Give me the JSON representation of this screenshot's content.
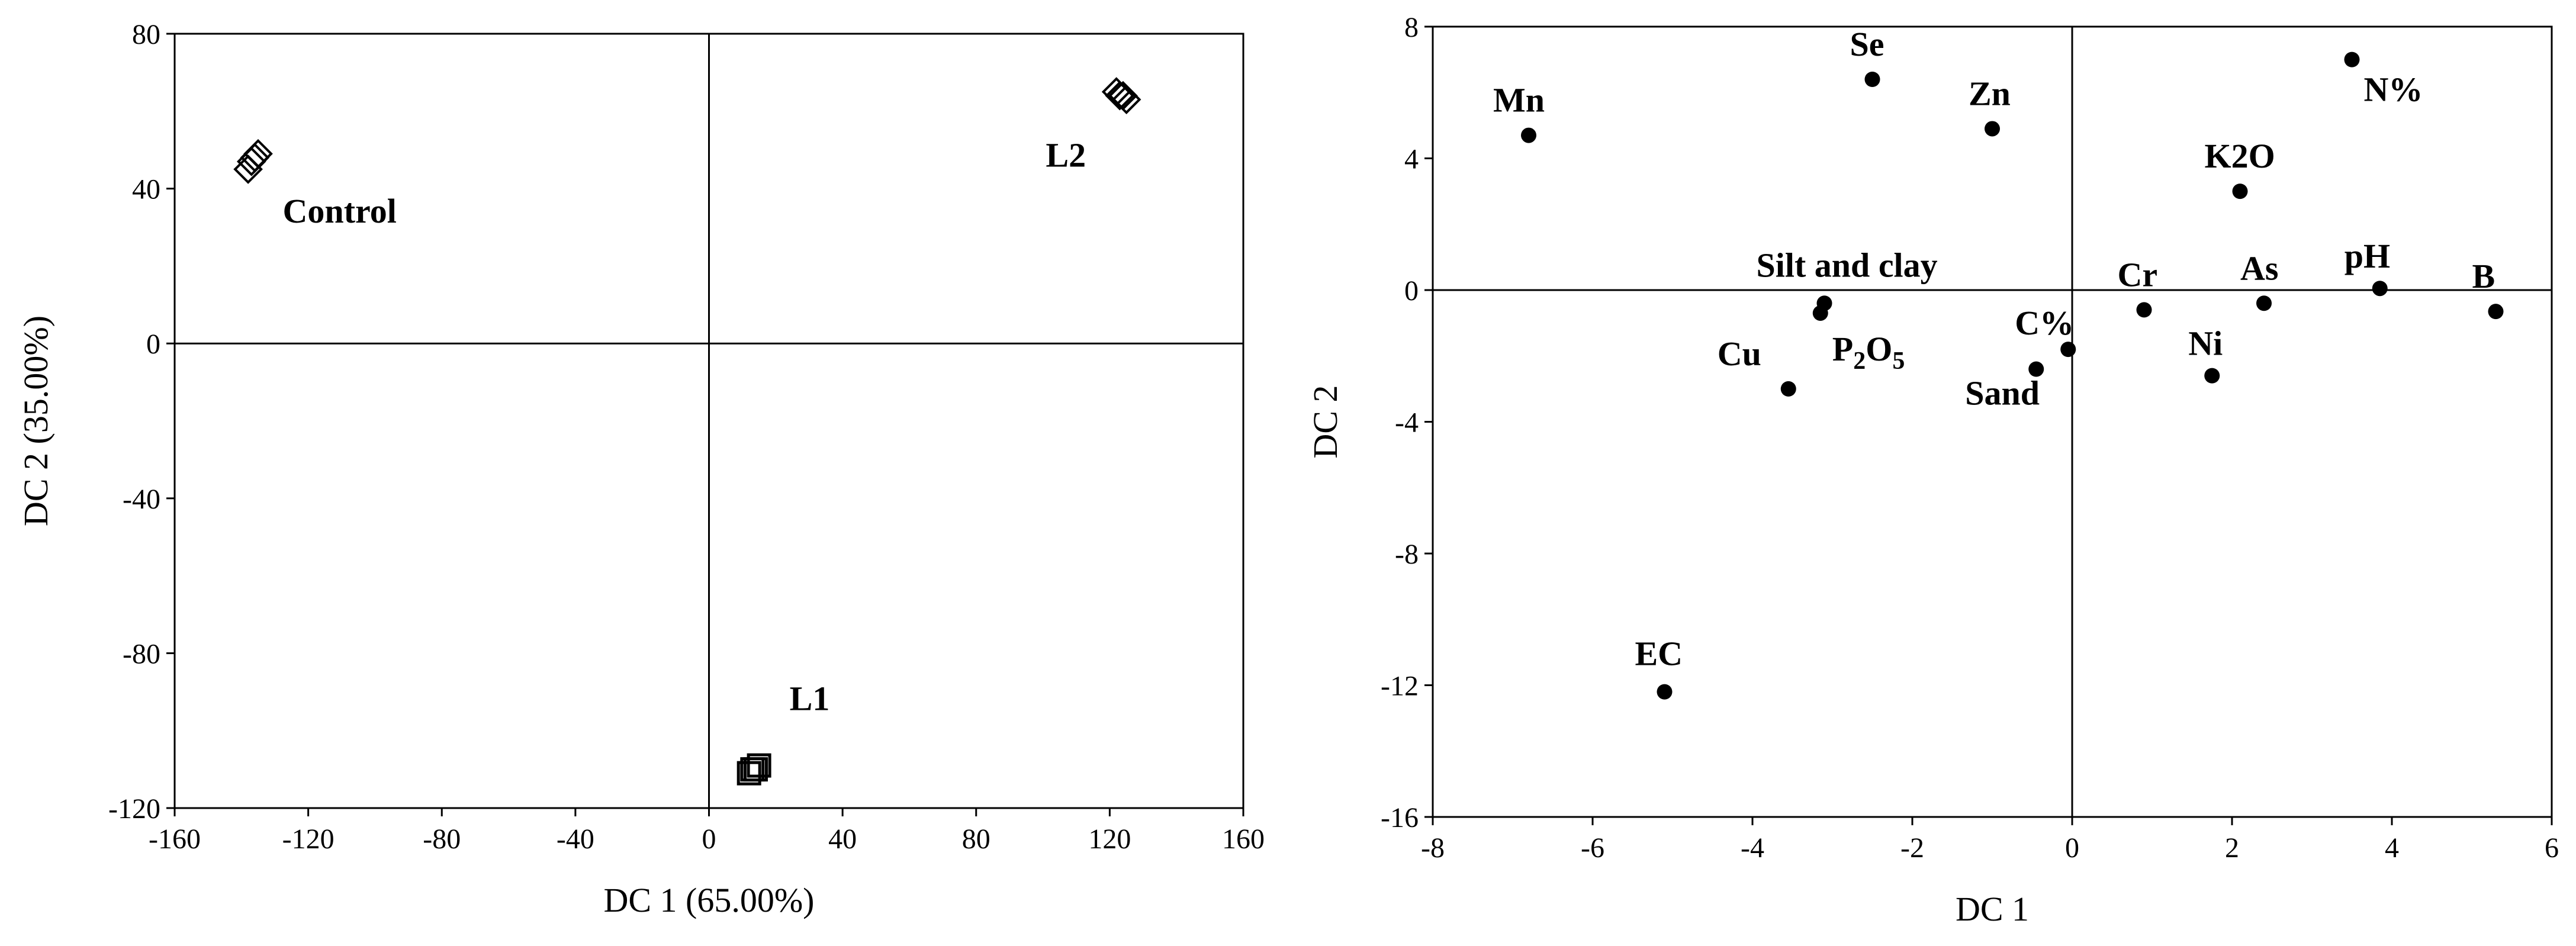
{
  "chart_data": [
    {
      "type": "scatter",
      "xlabel": "DC 1 (65.00%)",
      "ylabel": "DC 2 (35.00%)",
      "xlim": [
        -160,
        160
      ],
      "ylim": [
        -120,
        80
      ],
      "xticks": [
        -160,
        -120,
        -80,
        -40,
        0,
        40,
        80,
        120,
        160
      ],
      "yticks": [
        -120,
        -80,
        -40,
        0,
        40,
        80
      ],
      "zero_lines": true,
      "groups": [
        {
          "name": "Control",
          "marker": "diamond",
          "points": [
            [
              -138,
              45
            ],
            [
              -137,
              47
            ],
            [
              -136,
              48
            ],
            [
              -135,
              49
            ]
          ]
        },
        {
          "name": "L2",
          "marker": "diamond",
          "points": [
            [
              122,
              65
            ],
            [
              123,
              64
            ],
            [
              124,
              64
            ],
            [
              125,
              63
            ]
          ]
        },
        {
          "name": "L1",
          "marker": "square",
          "points": [
            [
              12,
              -111
            ],
            [
              13,
              -110
            ],
            [
              14,
              -110
            ],
            [
              15,
              -109
            ]
          ]
        }
      ]
    },
    {
      "type": "scatter",
      "xlabel": "DC 1",
      "ylabel": "DC 2",
      "xlim": [
        -8,
        6
      ],
      "ylim": [
        -16,
        8
      ],
      "xticks": [
        -8,
        -6,
        -4,
        -2,
        0,
        2,
        4,
        6
      ],
      "yticks": [
        -16,
        -12,
        -8,
        -4,
        0,
        4,
        8
      ],
      "zero_lines": true,
      "points": [
        {
          "label": "Mn",
          "x": -6.8,
          "y": 4.7
        },
        {
          "label": "Se",
          "x": -2.5,
          "y": 6.4
        },
        {
          "label": "Zn",
          "x": -1.0,
          "y": 4.9
        },
        {
          "label": "N%",
          "x": 3.5,
          "y": 7.0
        },
        {
          "label": "K2O",
          "x": 2.1,
          "y": 3.0
        },
        {
          "label": "Silt and clay",
          "x": -3.1,
          "y": -0.4
        },
        {
          "label": "P2O5",
          "x": -3.15,
          "y": -0.7
        },
        {
          "label": "Cu",
          "x": -3.55,
          "y": -3.0
        },
        {
          "label": "C%",
          "x": -0.05,
          "y": -1.8
        },
        {
          "label": "Sand",
          "x": -0.45,
          "y": -2.4
        },
        {
          "label": "Cr",
          "x": 0.9,
          "y": -0.6
        },
        {
          "label": "Ni",
          "x": 1.75,
          "y": -2.6
        },
        {
          "label": "As",
          "x": 2.4,
          "y": -0.4
        },
        {
          "label": "pH",
          "x": 3.85,
          "y": 0.05
        },
        {
          "label": "B",
          "x": 5.3,
          "y": -0.65
        },
        {
          "label": "EC",
          "x": -5.1,
          "y": -12.2
        }
      ]
    }
  ]
}
